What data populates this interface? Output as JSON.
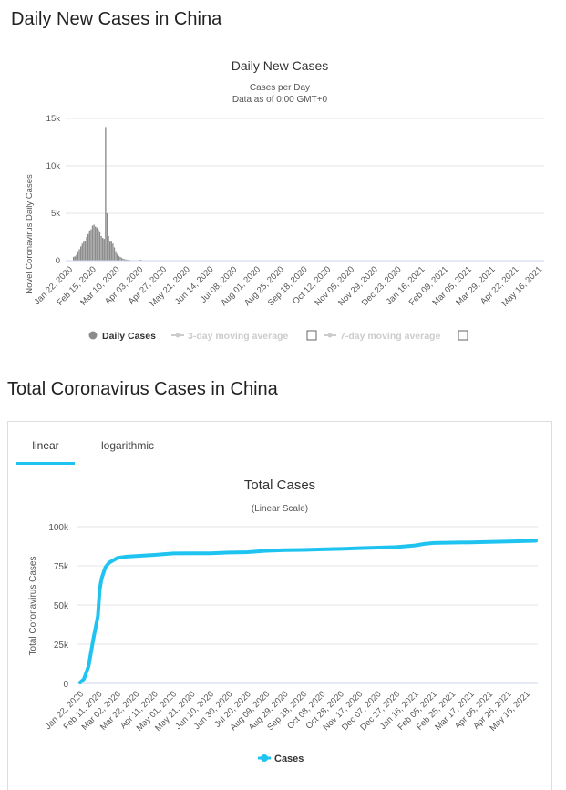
{
  "section1": {
    "title": "Daily New Cases in China"
  },
  "section2": {
    "title": "Total Coronavirus Cases in China"
  },
  "tabs": [
    {
      "label": "linear",
      "active": true
    },
    {
      "label": "logarithmic",
      "active": false
    }
  ],
  "colors": {
    "bars": "#8c8c8c",
    "line": "#1fc3f0",
    "grid": "#e6e6e6",
    "legend_disabled": "#cccccc"
  },
  "chart_data": [
    {
      "type": "bar",
      "title": "Daily New Cases",
      "subtitle_lines": [
        "Cases per Day",
        "Data as of 0:00 GMT+0"
      ],
      "ylabel": "Novel Coronavirus Daily Cases",
      "ylim": [
        0,
        15000
      ],
      "yticks": [
        0,
        5000,
        10000,
        15000
      ],
      "ytick_labels": [
        "0",
        "5k",
        "10k",
        "15k"
      ],
      "xtick_labels": [
        "Jan 22, 2020",
        "Feb 15, 2020",
        "Mar 10, 2020",
        "Apr 03, 2020",
        "Apr 27, 2020",
        "May 21, 2020",
        "Jun 14, 2020",
        "Jul 08, 2020",
        "Aug 01, 2020",
        "Aug 25, 2020",
        "Sep 18, 2020",
        "Oct 12, 2020",
        "Nov 05, 2020",
        "Nov 29, 2020",
        "Dec 23, 2020",
        "Jan 16, 2021",
        "Feb 09, 2021",
        "Mar 05, 2021",
        "Mar 29, 2021",
        "Apr 22, 2021",
        "May 16, 2021"
      ],
      "values": [
        400,
        450,
        600,
        900,
        1200,
        1500,
        1800,
        2000,
        2100,
        2500,
        2800,
        3100,
        3300,
        3700,
        3800,
        3600,
        3500,
        3300,
        3000,
        2600,
        2400,
        2300,
        14100,
        5000,
        2600,
        2000,
        2000,
        1800,
        1400,
        900,
        700,
        500,
        400,
        300,
        200,
        150,
        120,
        100,
        90,
        60,
        40,
        30,
        25,
        20,
        40,
        80,
        100,
        60,
        40,
        30,
        20,
        20,
        30,
        40,
        30,
        20,
        15,
        10,
        10,
        10
      ],
      "legend": [
        {
          "label": "Daily Cases",
          "enabled": true
        },
        {
          "label": "3-day moving average",
          "enabled": false
        },
        {
          "label": "7-day moving average",
          "enabled": false
        }
      ]
    },
    {
      "type": "line",
      "title": "Total Cases",
      "subtitle": "(Linear Scale)",
      "ylabel": "Total Coronavirus Cases",
      "ylim": [
        0,
        100000
      ],
      "yticks": [
        0,
        25000,
        50000,
        75000,
        100000
      ],
      "ytick_labels": [
        "0",
        "25k",
        "50k",
        "75k",
        "100k"
      ],
      "xtick_labels": [
        "Jan 22, 2020",
        "Feb 11, 2020",
        "Mar 02, 2020",
        "Mar 22, 2020",
        "Apr 11, 2020",
        "May 01, 2020",
        "May 21, 2020",
        "Jun 10, 2020",
        "Jun 30, 2020",
        "Jul 20, 2020",
        "Aug 09, 2020",
        "Aug 29, 2020",
        "Sep 18, 2020",
        "Oct 08, 2020",
        "Oct 28, 2020",
        "Nov 17, 2020",
        "Dec 07, 2020",
        "Dec 27, 2020",
        "Jan 16, 2021",
        "Feb 05, 2021",
        "Feb 25, 2021",
        "Mar 17, 2021",
        "Apr 06, 2021",
        "Apr 26, 2021",
        "May 16, 2021"
      ],
      "series": [
        {
          "name": "Cases",
          "x": [
            "Jan 22, 2020",
            "Jan 26, 2020",
            "Jan 31, 2020",
            "Feb 05, 2020",
            "Feb 10, 2020",
            "Feb 12, 2020",
            "Feb 14, 2020",
            "Feb 18, 2020",
            "Feb 22, 2020",
            "Mar 02, 2020",
            "Mar 12, 2020",
            "Mar 22, 2020",
            "Apr 11, 2020",
            "May 01, 2020",
            "May 21, 2020",
            "Jun 10, 2020",
            "Jun 30, 2020",
            "Jul 20, 2020",
            "Aug 09, 2020",
            "Aug 29, 2020",
            "Sep 18, 2020",
            "Oct 08, 2020",
            "Oct 28, 2020",
            "Nov 17, 2020",
            "Dec 07, 2020",
            "Dec 27, 2020",
            "Jan 16, 2021",
            "Jan 26, 2021",
            "Feb 05, 2021",
            "Feb 25, 2021",
            "Mar 17, 2021",
            "Apr 06, 2021",
            "Apr 26, 2021",
            "May 16, 2021",
            "May 26, 2021"
          ],
          "y": [
            600,
            2800,
            11000,
            28000,
            43000,
            60000,
            67000,
            74000,
            77000,
            80000,
            80900,
            81300,
            82000,
            82900,
            83000,
            83000,
            83500,
            83700,
            84600,
            85000,
            85200,
            85500,
            85800,
            86300,
            86600,
            87000,
            88000,
            89000,
            89600,
            89800,
            90000,
            90300,
            90500,
            90800,
            91000
          ]
        }
      ]
    }
  ]
}
